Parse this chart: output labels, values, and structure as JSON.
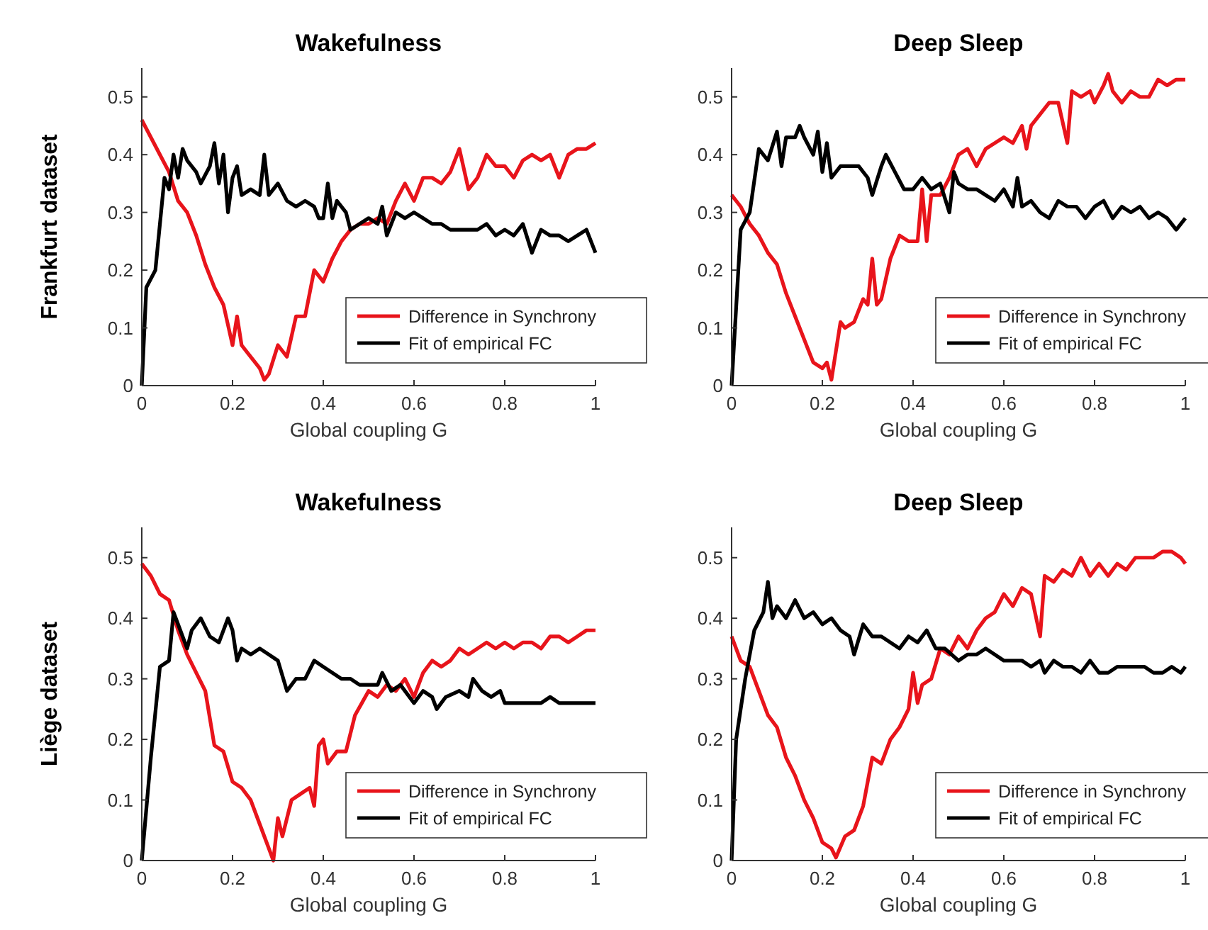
{
  "chart_data": [
    {
      "type": "line",
      "title": "Wakefulness",
      "xlabel": "Global coupling G",
      "ylabel": "Frankfurt dataset",
      "xlim": [
        0,
        1
      ],
      "ylim": [
        0,
        0.55
      ],
      "xticks": [
        0,
        0.2,
        0.4,
        0.6,
        0.8,
        1
      ],
      "yticks": [
        0,
        0.1,
        0.2,
        0.3,
        0.4,
        0.5
      ],
      "legend": "bottom right",
      "grid": false,
      "line_style": "solid",
      "series": [
        {
          "name": "Difference in Synchrony",
          "color": "#e8141b",
          "x": [
            0,
            0.02,
            0.04,
            0.06,
            0.08,
            0.1,
            0.12,
            0.14,
            0.16,
            0.18,
            0.2,
            0.21,
            0.22,
            0.24,
            0.26,
            0.27,
            0.28,
            0.3,
            0.32,
            0.34,
            0.36,
            0.38,
            0.4,
            0.42,
            0.44,
            0.46,
            0.48,
            0.5,
            0.52,
            0.54,
            0.56,
            0.58,
            0.6,
            0.62,
            0.64,
            0.66,
            0.68,
            0.7,
            0.72,
            0.74,
            0.76,
            0.78,
            0.8,
            0.82,
            0.84,
            0.86,
            0.88,
            0.9,
            0.92,
            0.94,
            0.96,
            0.98,
            1
          ],
          "values": [
            0.46,
            0.43,
            0.4,
            0.37,
            0.32,
            0.3,
            0.26,
            0.21,
            0.17,
            0.14,
            0.07,
            0.12,
            0.07,
            0.05,
            0.03,
            0.01,
            0.02,
            0.07,
            0.05,
            0.12,
            0.12,
            0.2,
            0.18,
            0.22,
            0.25,
            0.27,
            0.28,
            0.28,
            0.29,
            0.28,
            0.32,
            0.35,
            0.32,
            0.36,
            0.36,
            0.35,
            0.37,
            0.41,
            0.34,
            0.36,
            0.4,
            0.38,
            0.38,
            0.36,
            0.39,
            0.4,
            0.39,
            0.4,
            0.36,
            0.4,
            0.41,
            0.41,
            0.42
          ]
        },
        {
          "name": "Fit of empirical FC",
          "color": "#000000",
          "x": [
            0,
            0.01,
            0.03,
            0.05,
            0.06,
            0.07,
            0.08,
            0.09,
            0.1,
            0.12,
            0.13,
            0.15,
            0.16,
            0.17,
            0.18,
            0.19,
            0.2,
            0.21,
            0.22,
            0.24,
            0.26,
            0.27,
            0.28,
            0.3,
            0.32,
            0.34,
            0.36,
            0.38,
            0.39,
            0.4,
            0.41,
            0.42,
            0.43,
            0.45,
            0.46,
            0.48,
            0.5,
            0.52,
            0.53,
            0.54,
            0.56,
            0.58,
            0.6,
            0.62,
            0.64,
            0.66,
            0.68,
            0.7,
            0.72,
            0.74,
            0.76,
            0.78,
            0.8,
            0.82,
            0.84,
            0.86,
            0.88,
            0.9,
            0.92,
            0.94,
            0.96,
            0.98,
            1
          ],
          "values": [
            0,
            0.17,
            0.2,
            0.36,
            0.34,
            0.4,
            0.36,
            0.41,
            0.39,
            0.37,
            0.35,
            0.38,
            0.42,
            0.35,
            0.4,
            0.3,
            0.36,
            0.38,
            0.33,
            0.34,
            0.33,
            0.4,
            0.33,
            0.35,
            0.32,
            0.31,
            0.32,
            0.31,
            0.29,
            0.29,
            0.35,
            0.29,
            0.32,
            0.3,
            0.27,
            0.28,
            0.29,
            0.28,
            0.31,
            0.26,
            0.3,
            0.29,
            0.3,
            0.29,
            0.28,
            0.28,
            0.27,
            0.27,
            0.27,
            0.27,
            0.28,
            0.26,
            0.27,
            0.26,
            0.28,
            0.23,
            0.27,
            0.26,
            0.26,
            0.25,
            0.26,
            0.27,
            0.23
          ]
        }
      ]
    },
    {
      "type": "line",
      "title": "Deep Sleep",
      "xlabel": "Global coupling G",
      "xlim": [
        0,
        1
      ],
      "ylim": [
        0,
        0.55
      ],
      "xticks": [
        0,
        0.2,
        0.4,
        0.6,
        0.8,
        1
      ],
      "yticks": [
        0,
        0.1,
        0.2,
        0.3,
        0.4,
        0.5
      ],
      "legend": "bottom right",
      "grid": false,
      "line_style": "solid",
      "series": [
        {
          "name": "Difference in Synchrony",
          "color": "#e8141b",
          "x": [
            0,
            0.02,
            0.04,
            0.06,
            0.08,
            0.1,
            0.12,
            0.14,
            0.16,
            0.18,
            0.2,
            0.21,
            0.22,
            0.24,
            0.25,
            0.27,
            0.29,
            0.3,
            0.31,
            0.32,
            0.33,
            0.35,
            0.37,
            0.39,
            0.41,
            0.42,
            0.43,
            0.44,
            0.46,
            0.48,
            0.5,
            0.52,
            0.54,
            0.56,
            0.58,
            0.6,
            0.62,
            0.64,
            0.65,
            0.66,
            0.68,
            0.7,
            0.72,
            0.74,
            0.75,
            0.77,
            0.79,
            0.8,
            0.82,
            0.83,
            0.84,
            0.86,
            0.88,
            0.9,
            0.92,
            0.94,
            0.96,
            0.98,
            1
          ],
          "values": [
            0.33,
            0.31,
            0.28,
            0.26,
            0.23,
            0.21,
            0.16,
            0.12,
            0.08,
            0.04,
            0.03,
            0.04,
            0.01,
            0.11,
            0.1,
            0.11,
            0.15,
            0.14,
            0.22,
            0.14,
            0.15,
            0.22,
            0.26,
            0.25,
            0.25,
            0.34,
            0.25,
            0.33,
            0.33,
            0.36,
            0.4,
            0.41,
            0.38,
            0.41,
            0.42,
            0.43,
            0.42,
            0.45,
            0.41,
            0.45,
            0.47,
            0.49,
            0.49,
            0.42,
            0.51,
            0.5,
            0.51,
            0.49,
            0.52,
            0.54,
            0.51,
            0.49,
            0.51,
            0.5,
            0.5,
            0.53,
            0.52,
            0.53,
            0.53
          ]
        },
        {
          "name": "Fit of empirical FC",
          "color": "#000000",
          "x": [
            0,
            0.02,
            0.04,
            0.06,
            0.08,
            0.1,
            0.11,
            0.12,
            0.14,
            0.15,
            0.16,
            0.18,
            0.19,
            0.2,
            0.21,
            0.22,
            0.24,
            0.26,
            0.28,
            0.3,
            0.31,
            0.33,
            0.34,
            0.36,
            0.38,
            0.4,
            0.42,
            0.44,
            0.46,
            0.48,
            0.49,
            0.5,
            0.52,
            0.54,
            0.56,
            0.58,
            0.6,
            0.62,
            0.63,
            0.64,
            0.66,
            0.68,
            0.7,
            0.72,
            0.74,
            0.76,
            0.78,
            0.8,
            0.82,
            0.84,
            0.86,
            0.88,
            0.9,
            0.92,
            0.94,
            0.96,
            0.98,
            1
          ],
          "values": [
            0,
            0.27,
            0.3,
            0.41,
            0.39,
            0.44,
            0.38,
            0.43,
            0.43,
            0.45,
            0.43,
            0.4,
            0.44,
            0.37,
            0.42,
            0.36,
            0.38,
            0.38,
            0.38,
            0.36,
            0.33,
            0.38,
            0.4,
            0.37,
            0.34,
            0.34,
            0.36,
            0.34,
            0.35,
            0.3,
            0.37,
            0.35,
            0.34,
            0.34,
            0.33,
            0.32,
            0.34,
            0.31,
            0.36,
            0.31,
            0.32,
            0.3,
            0.29,
            0.32,
            0.31,
            0.31,
            0.29,
            0.31,
            0.32,
            0.29,
            0.31,
            0.3,
            0.31,
            0.29,
            0.3,
            0.29,
            0.27,
            0.29
          ]
        }
      ]
    },
    {
      "type": "line",
      "title": "Wakefulness",
      "xlabel": "Global coupling G",
      "ylabel": "Liège dataset",
      "xlim": [
        0,
        1
      ],
      "ylim": [
        0,
        0.55
      ],
      "xticks": [
        0,
        0.2,
        0.4,
        0.6,
        0.8,
        1
      ],
      "yticks": [
        0,
        0.1,
        0.2,
        0.3,
        0.4,
        0.5
      ],
      "legend": "bottom right",
      "grid": false,
      "line_style": "solid",
      "series": [
        {
          "name": "Difference in Synchrony",
          "color": "#e8141b",
          "x": [
            0,
            0.02,
            0.04,
            0.06,
            0.08,
            0.1,
            0.12,
            0.14,
            0.16,
            0.18,
            0.2,
            0.22,
            0.24,
            0.26,
            0.28,
            0.29,
            0.3,
            0.31,
            0.33,
            0.35,
            0.37,
            0.38,
            0.39,
            0.4,
            0.41,
            0.43,
            0.45,
            0.47,
            0.5,
            0.52,
            0.54,
            0.56,
            0.58,
            0.6,
            0.62,
            0.64,
            0.66,
            0.68,
            0.7,
            0.72,
            0.74,
            0.76,
            0.78,
            0.8,
            0.82,
            0.84,
            0.86,
            0.88,
            0.9,
            0.92,
            0.94,
            0.96,
            0.98,
            1
          ],
          "values": [
            0.49,
            0.47,
            0.44,
            0.43,
            0.38,
            0.34,
            0.31,
            0.28,
            0.19,
            0.18,
            0.13,
            0.12,
            0.1,
            0.06,
            0.02,
            0,
            0.07,
            0.04,
            0.1,
            0.11,
            0.12,
            0.09,
            0.19,
            0.2,
            0.16,
            0.18,
            0.18,
            0.24,
            0.28,
            0.27,
            0.29,
            0.28,
            0.3,
            0.27,
            0.31,
            0.33,
            0.32,
            0.33,
            0.35,
            0.34,
            0.35,
            0.36,
            0.35,
            0.36,
            0.35,
            0.36,
            0.36,
            0.35,
            0.37,
            0.37,
            0.36,
            0.37,
            0.38,
            0.38
          ]
        },
        {
          "name": "Fit of empirical FC",
          "color": "#000000",
          "x": [
            0,
            0.02,
            0.04,
            0.06,
            0.07,
            0.08,
            0.1,
            0.11,
            0.13,
            0.15,
            0.17,
            0.19,
            0.2,
            0.21,
            0.22,
            0.24,
            0.26,
            0.28,
            0.3,
            0.32,
            0.34,
            0.36,
            0.38,
            0.4,
            0.42,
            0.44,
            0.46,
            0.48,
            0.5,
            0.52,
            0.53,
            0.55,
            0.57,
            0.6,
            0.62,
            0.64,
            0.65,
            0.67,
            0.7,
            0.72,
            0.73,
            0.75,
            0.77,
            0.79,
            0.8,
            0.82,
            0.84,
            0.86,
            0.88,
            0.9,
            0.92,
            0.94,
            0.96,
            0.98,
            1
          ],
          "values": [
            0,
            0.17,
            0.32,
            0.33,
            0.41,
            0.39,
            0.35,
            0.38,
            0.4,
            0.37,
            0.36,
            0.4,
            0.38,
            0.33,
            0.35,
            0.34,
            0.35,
            0.34,
            0.33,
            0.28,
            0.3,
            0.3,
            0.33,
            0.32,
            0.31,
            0.3,
            0.3,
            0.29,
            0.29,
            0.29,
            0.31,
            0.28,
            0.29,
            0.26,
            0.28,
            0.27,
            0.25,
            0.27,
            0.28,
            0.27,
            0.3,
            0.28,
            0.27,
            0.28,
            0.26,
            0.26,
            0.26,
            0.26,
            0.26,
            0.27,
            0.26,
            0.26,
            0.26,
            0.26,
            0.26
          ]
        }
      ]
    },
    {
      "type": "line",
      "title": "Deep Sleep",
      "xlabel": "Global coupling G",
      "xlim": [
        0,
        1
      ],
      "ylim": [
        0,
        0.55
      ],
      "xticks": [
        0,
        0.2,
        0.4,
        0.6,
        0.8,
        1
      ],
      "yticks": [
        0,
        0.1,
        0.2,
        0.3,
        0.4,
        0.5
      ],
      "legend": "bottom right",
      "grid": false,
      "line_style": "solid",
      "series": [
        {
          "name": "Difference in Synchrony",
          "color": "#e8141b",
          "x": [
            0,
            0.02,
            0.04,
            0.06,
            0.08,
            0.1,
            0.12,
            0.14,
            0.16,
            0.18,
            0.2,
            0.22,
            0.23,
            0.25,
            0.27,
            0.29,
            0.31,
            0.33,
            0.35,
            0.37,
            0.39,
            0.4,
            0.41,
            0.42,
            0.44,
            0.46,
            0.48,
            0.5,
            0.52,
            0.54,
            0.56,
            0.58,
            0.6,
            0.62,
            0.64,
            0.66,
            0.68,
            0.69,
            0.71,
            0.73,
            0.75,
            0.77,
            0.79,
            0.81,
            0.83,
            0.85,
            0.87,
            0.89,
            0.91,
            0.93,
            0.95,
            0.97,
            0.99,
            1
          ],
          "values": [
            0.37,
            0.33,
            0.32,
            0.28,
            0.24,
            0.22,
            0.17,
            0.14,
            0.1,
            0.07,
            0.03,
            0.02,
            0.005,
            0.04,
            0.05,
            0.09,
            0.17,
            0.16,
            0.2,
            0.22,
            0.25,
            0.31,
            0.26,
            0.29,
            0.3,
            0.35,
            0.34,
            0.37,
            0.35,
            0.38,
            0.4,
            0.41,
            0.44,
            0.42,
            0.45,
            0.44,
            0.37,
            0.47,
            0.46,
            0.48,
            0.47,
            0.5,
            0.47,
            0.49,
            0.47,
            0.49,
            0.48,
            0.5,
            0.5,
            0.5,
            0.51,
            0.51,
            0.5,
            0.49
          ]
        },
        {
          "name": "Fit of empirical FC",
          "color": "#000000",
          "x": [
            0,
            0.01,
            0.03,
            0.05,
            0.07,
            0.08,
            0.09,
            0.1,
            0.12,
            0.14,
            0.16,
            0.18,
            0.2,
            0.22,
            0.24,
            0.26,
            0.27,
            0.29,
            0.31,
            0.33,
            0.35,
            0.37,
            0.39,
            0.41,
            0.43,
            0.45,
            0.47,
            0.5,
            0.52,
            0.54,
            0.56,
            0.58,
            0.6,
            0.62,
            0.64,
            0.66,
            0.68,
            0.69,
            0.71,
            0.73,
            0.75,
            0.77,
            0.79,
            0.81,
            0.83,
            0.85,
            0.87,
            0.89,
            0.91,
            0.93,
            0.95,
            0.97,
            0.99,
            1
          ],
          "values": [
            0,
            0.2,
            0.3,
            0.38,
            0.41,
            0.46,
            0.4,
            0.42,
            0.4,
            0.43,
            0.4,
            0.41,
            0.39,
            0.4,
            0.38,
            0.37,
            0.34,
            0.39,
            0.37,
            0.37,
            0.36,
            0.35,
            0.37,
            0.36,
            0.38,
            0.35,
            0.35,
            0.33,
            0.34,
            0.34,
            0.35,
            0.34,
            0.33,
            0.33,
            0.33,
            0.32,
            0.33,
            0.31,
            0.33,
            0.32,
            0.32,
            0.31,
            0.33,
            0.31,
            0.31,
            0.32,
            0.32,
            0.32,
            0.32,
            0.31,
            0.31,
            0.32,
            0.31,
            0.32
          ]
        }
      ]
    }
  ]
}
